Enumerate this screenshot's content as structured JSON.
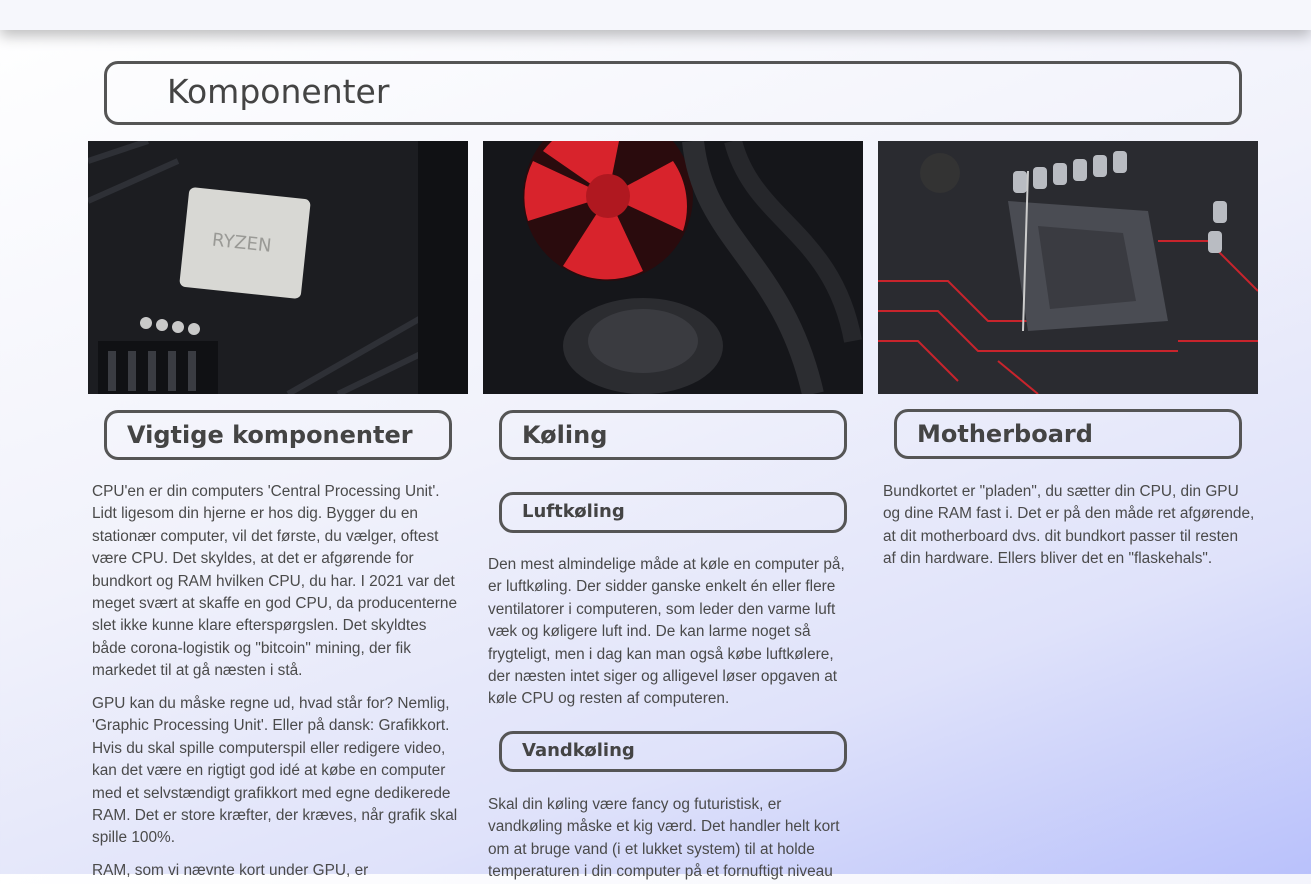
{
  "header": {
    "title": "Komponenter"
  },
  "columns": [
    {
      "title": "Vigtige komponenter",
      "paragraphs": [
        "CPU'en er din computers 'Central Processing Unit'. Lidt ligesom din hjerne er hos dig. Bygger du en stationær computer, vil det første, du vælger, oftest være CPU. Det skyldes, at det er afgørende for bundkort og RAM hvilken CPU, du har. I 2021 var det meget svært at skaffe en god CPU, da producenterne slet ikke kunne klare efterspørgslen. Det skyldtes både corona-logistik og \"bitcoin\" mining, der fik markedet til at gå næsten i stå.",
        "GPU kan du måske regne ud, hvad står for? Nemlig, 'Graphic Processing Unit'. Eller på dansk: Grafikkort. Hvis du skal spille computerspil eller redigere video, kan det være en rigtigt god idé at købe en computer med et selvstændigt grafikkort med egne dedikerede RAM. Det er store kræfter, der kræves, når grafik skal spille 100%.",
        "RAM, som vi nævnte kort under GPU, er"
      ]
    },
    {
      "title": "Køling",
      "sections": [
        {
          "title": "Luftkøling",
          "text": "Den mest almindelige måde at køle en computer på, er luftkøling. Der sidder ganske enkelt én eller flere ventilatorer i computeren, som leder den varme luft væk og køligere luft ind. De kan larme noget så frygteligt, men i dag kan man også købe luftkølere, der næsten intet siger og alligevel løser opgaven at køle CPU og resten af computeren."
        },
        {
          "title": "Vandkøling",
          "text": "Skal din køling være fancy og futuristisk, er vandkøling måske et kig værd. Det handler helt kort om at bruge vand (i et lukket system) til at holde temperaturen i din computer på et fornuftigt niveau"
        }
      ]
    },
    {
      "title": "Motherboard",
      "paragraphs": [
        "Bundkortet er \"pladen\", du sætter din CPU, din GPU og dine RAM fast i. Det er på den måde ret afgørende, at dit motherboard dvs. dit bundkort passer til resten af din hardware. Ellers bliver det en \"flaskehals\"."
      ]
    }
  ]
}
